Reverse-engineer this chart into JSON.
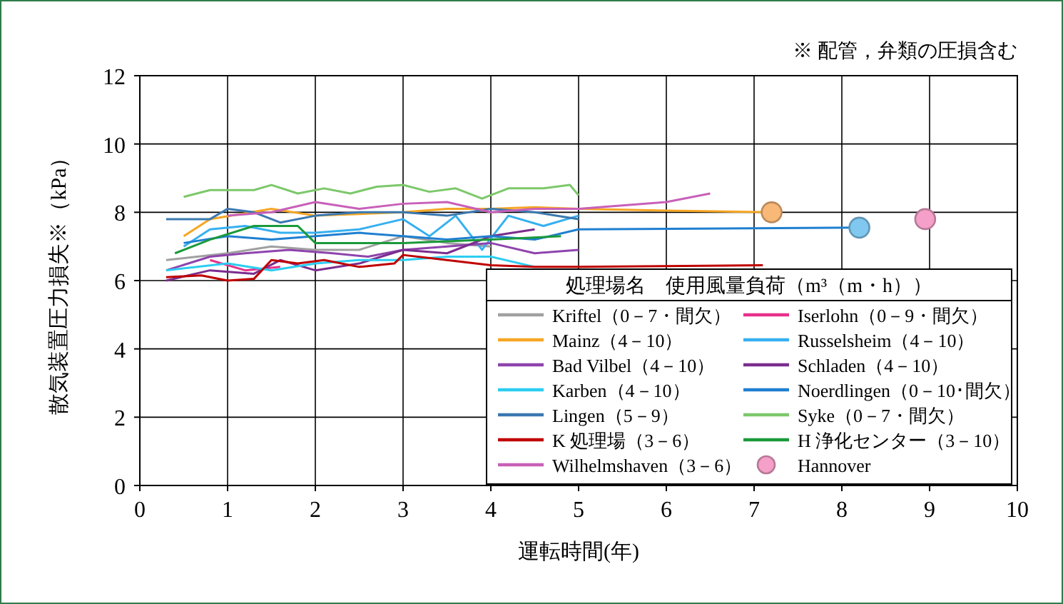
{
  "chart_data": {
    "type": "line",
    "xlabel": "運転時間(年)",
    "ylabel": "散気装置圧力損失※（kPa）",
    "legend_title": "処理場名　使用風量負荷（m³（m・h））",
    "annotations": [
      "※ 配管，弁類の圧損含む"
    ],
    "xlim": [
      0,
      10
    ],
    "xticks": [
      0,
      1,
      2,
      3,
      4,
      5,
      6,
      7,
      8,
      9,
      10
    ],
    "ylim": [
      0,
      12
    ],
    "yticks": [
      0,
      2,
      4,
      6,
      8,
      10,
      12
    ],
    "grid": true,
    "legend": "bottom right",
    "series": [
      {
        "name": "Kriftel（0－7・間欠）",
        "color": "#a0a0a0",
        "x": [
          0.3,
          1.0,
          1.5,
          2.0,
          2.5,
          3.0,
          3.5,
          4.0
        ],
        "values": [
          6.6,
          6.8,
          7.0,
          6.9,
          6.9,
          7.3,
          7.1,
          7.0
        ]
      },
      {
        "name": "Iserlohn（0－9・間欠）",
        "color": "#e8308a",
        "x": [
          0.8,
          1.2,
          1.6
        ],
        "values": [
          6.6,
          6.3,
          6.4
        ]
      },
      {
        "name": "Mainz（4－10）",
        "color": "#f5a623",
        "x": [
          0.5,
          0.8,
          1.5,
          2.0,
          3.0,
          3.5,
          4.0,
          4.5,
          5.0,
          6.0,
          7.2
        ],
        "values": [
          7.3,
          7.8,
          8.1,
          7.9,
          8.0,
          8.1,
          8.1,
          8.15,
          8.1,
          8.05,
          8.0
        ]
      },
      {
        "name": "Russelsheim（4－10）",
        "color": "#36b0f0",
        "x": [
          0.5,
          0.8,
          1.2,
          1.6,
          2.0,
          2.5,
          3.0,
          3.3,
          3.6,
          3.9,
          4.2,
          4.6,
          5.0
        ],
        "values": [
          7.0,
          7.5,
          7.6,
          7.4,
          7.4,
          7.5,
          7.8,
          7.3,
          7.9,
          6.9,
          7.9,
          7.6,
          7.9
        ]
      },
      {
        "name": "Bad Vilbel（4－10）",
        "color": "#8e44ad",
        "x": [
          0.3,
          0.8,
          1.2,
          1.7,
          2.2,
          2.6,
          3.0,
          3.5,
          4.0,
          4.5,
          5.0
        ],
        "values": [
          6.3,
          6.7,
          6.8,
          6.9,
          6.8,
          6.7,
          6.9,
          7.0,
          7.1,
          6.8,
          6.9
        ]
      },
      {
        "name": "Schladen（4－10）",
        "color": "#7b2d8e",
        "x": [
          0.3,
          0.8,
          1.3,
          1.6,
          2.0,
          2.5,
          3.0,
          3.5,
          4.0,
          4.5
        ],
        "values": [
          6.0,
          6.3,
          6.2,
          6.6,
          6.3,
          6.5,
          6.9,
          6.8,
          7.3,
          7.5
        ]
      },
      {
        "name": "Karben（4－10）",
        "color": "#2ccdf0",
        "x": [
          0.3,
          1.0,
          1.5,
          2.0,
          2.5,
          3.0,
          3.5,
          4.0,
          4.5
        ],
        "values": [
          6.3,
          6.5,
          6.3,
          6.5,
          6.6,
          6.6,
          6.7,
          6.7,
          6.4
        ]
      },
      {
        "name": "Noerdlingen（0－10･間欠）",
        "color": "#1f7fd0",
        "x": [
          0.5,
          1.0,
          1.5,
          2.0,
          2.5,
          3.0,
          3.5,
          4.0,
          4.5,
          5.0,
          8.2
        ],
        "values": [
          7.1,
          7.3,
          7.2,
          7.3,
          7.4,
          7.3,
          7.2,
          7.3,
          7.2,
          7.5,
          7.55
        ]
      },
      {
        "name": "Lingen（5－9）",
        "color": "#3a78b0",
        "x": [
          0.3,
          0.8,
          1.0,
          1.3,
          1.6,
          2.0,
          2.5,
          3.0,
          3.5,
          4.0,
          4.5,
          5.0
        ],
        "values": [
          7.8,
          7.8,
          8.1,
          8.0,
          7.7,
          7.9,
          8.0,
          8.0,
          7.9,
          8.1,
          8.0,
          7.8
        ]
      },
      {
        "name": "Syke（0－7・間欠）",
        "color": "#7cc86a",
        "x": [
          0.5,
          0.8,
          1.3,
          1.5,
          1.8,
          2.1,
          2.4,
          2.7,
          3.0,
          3.3,
          3.6,
          3.9,
          4.2,
          4.6,
          4.9,
          5.0
        ],
        "values": [
          8.45,
          8.65,
          8.65,
          8.8,
          8.55,
          8.7,
          8.55,
          8.75,
          8.8,
          8.6,
          8.7,
          8.4,
          8.7,
          8.7,
          8.8,
          8.5
        ]
      },
      {
        "name": "K 処理場（3－6）",
        "color": "#c00000",
        "x": [
          0.3,
          0.7,
          1.0,
          1.3,
          1.5,
          1.8,
          2.1,
          2.5,
          2.9,
          3.0,
          3.5,
          4.0,
          4.5,
          5.0,
          7.1
        ],
        "values": [
          6.1,
          6.15,
          6.0,
          6.05,
          6.6,
          6.5,
          6.6,
          6.4,
          6.5,
          6.75,
          6.6,
          6.45,
          6.4,
          6.4,
          6.45
        ]
      },
      {
        "name": "H 浄化センター（3－10）",
        "color": "#1a9a3a",
        "x": [
          0.4,
          0.8,
          1.3,
          1.8,
          2.0,
          3.0,
          4.0,
          4.8
        ],
        "values": [
          6.8,
          7.2,
          7.6,
          7.6,
          7.1,
          7.1,
          7.2,
          7.3
        ]
      },
      {
        "name": "Wilhelmshaven（3－6）",
        "color": "#c860b8",
        "x": [
          1.0,
          1.5,
          2.0,
          2.5,
          3.0,
          3.5,
          4.0,
          4.5,
          5.0,
          5.5,
          6.0,
          6.5
        ],
        "values": [
          7.9,
          8.0,
          8.3,
          8.1,
          8.25,
          8.3,
          8.0,
          8.1,
          8.1,
          8.2,
          8.3,
          8.55
        ]
      },
      {
        "name": "Hannover",
        "type": "scatter",
        "marker": "circle",
        "color": "#f4a0c8",
        "x": [
          8.95
        ],
        "values": [
          7.8
        ]
      },
      {
        "type": "scatter",
        "marker": "circle",
        "color": "#f8b878",
        "x": [
          7.2
        ],
        "values": [
          8.0
        ]
      },
      {
        "type": "scatter",
        "marker": "circle",
        "color": "#80c8f0",
        "x": [
          8.2
        ],
        "values": [
          7.55
        ]
      }
    ]
  }
}
